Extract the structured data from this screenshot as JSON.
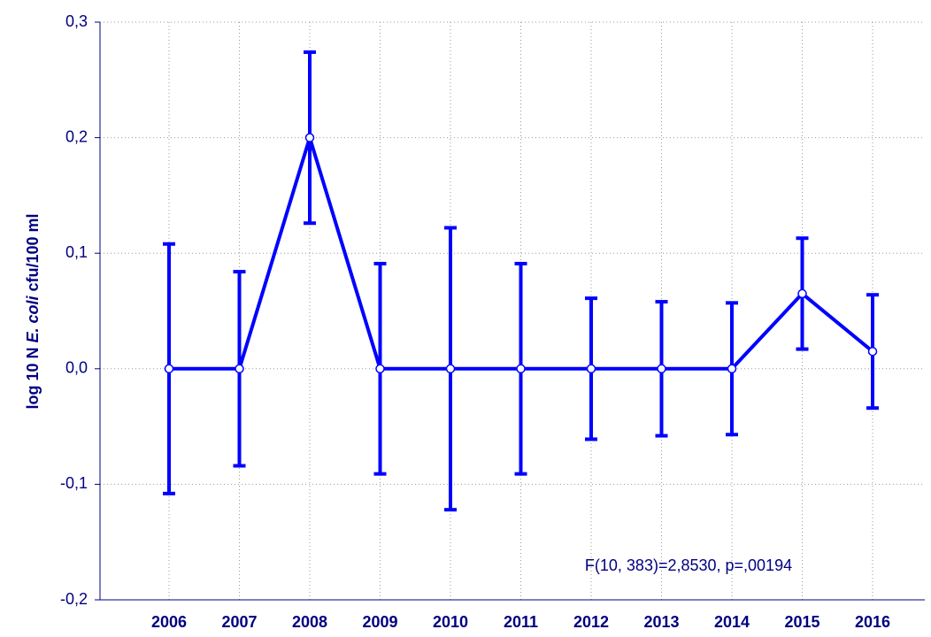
{
  "chart_data": {
    "type": "line",
    "ylabel_parts": [
      "log 10 N",
      "E. coli",
      "cfu/100 ml"
    ],
    "annotation": "F(10, 383)=2,8530, p=,00194",
    "categories": [
      "2006",
      "2007",
      "2008",
      "2009",
      "2010",
      "2011",
      "2012",
      "2013",
      "2014",
      "2015",
      "2016"
    ],
    "series": [
      {
        "color": "#0000ff",
        "values": [
          0,
          0,
          0.2,
          0,
          0,
          0,
          0,
          0,
          0,
          0.065,
          0.015
        ],
        "errors": [
          0.108,
          0.084,
          0.074,
          0.091,
          0.122,
          0.091,
          0.061,
          0.058,
          0.057,
          0.048,
          0.049
        ]
      }
    ],
    "ylim": [
      -0.2,
      0.3
    ],
    "yticks": [
      {
        "value": -0.2,
        "label": "-0,2"
      },
      {
        "value": -0.1,
        "label": "-0,1"
      },
      {
        "value": 0,
        "label": "0,0"
      },
      {
        "value": 0.1,
        "label": "0,1"
      },
      {
        "value": 0.2,
        "label": "0,2"
      },
      {
        "value": 0.3,
        "label": "0,3"
      }
    ],
    "grid": true
  }
}
